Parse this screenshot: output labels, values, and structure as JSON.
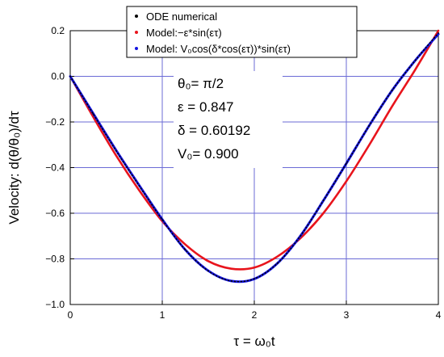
{
  "chart_data": {
    "type": "line",
    "xlabel": "τ = ω₀t",
    "ylabel": "Velocity: d(θ/θ₀)/dτ",
    "xlim": [
      0,
      4
    ],
    "ylim": [
      -1.0,
      0.2
    ],
    "xticks": [
      0,
      1,
      2,
      3,
      4
    ],
    "yticks": [
      -1.0,
      -0.8,
      -0.6,
      -0.4,
      -0.2,
      0.0,
      0.2
    ],
    "xtick_labels": [
      "0",
      "1",
      "2",
      "3",
      "4"
    ],
    "ytick_labels": [
      "−1.0",
      "−0.8",
      "−0.6",
      "−0.4",
      "−0.2",
      "0.0",
      "0.2"
    ],
    "grid": true,
    "legend_position": "top",
    "series": [
      {
        "name": "ODE  numerical",
        "color": "#000000",
        "marker": "dot",
        "x": [
          0,
          0.25,
          0.5,
          0.75,
          1.0,
          1.25,
          1.5,
          1.75,
          2.0,
          2.25,
          2.5,
          2.75,
          3.0,
          3.25,
          3.5,
          3.75,
          4.0
        ],
        "y": [
          0,
          -0.165,
          -0.327,
          -0.48,
          -0.628,
          -0.76,
          -0.853,
          -0.897,
          -0.887,
          -0.82,
          -0.7,
          -0.545,
          -0.382,
          -0.215,
          -0.06,
          0.07,
          0.19
        ]
      },
      {
        "name": "Model:−ε*sin(ετ)",
        "color": "#e8141c",
        "marker": "dot",
        "x": [
          0,
          0.25,
          0.5,
          0.75,
          1.0,
          1.25,
          1.5,
          1.75,
          2.0,
          2.25,
          2.5,
          2.75,
          3.0,
          3.25,
          3.5,
          3.75,
          4.0
        ],
        "y": [
          0,
          -0.178,
          -0.348,
          -0.5,
          -0.635,
          -0.737,
          -0.81,
          -0.843,
          -0.838,
          -0.79,
          -0.71,
          -0.6,
          -0.46,
          -0.3,
          -0.13,
          0.03,
          0.2
        ]
      },
      {
        "name": "Model: V₀cos(δ*cos(ετ))*sin(ετ)",
        "color": "#1414e0",
        "marker": "dot",
        "x": [
          0,
          0.25,
          0.5,
          0.75,
          1.0,
          1.25,
          1.5,
          1.75,
          2.0,
          2.25,
          2.5,
          2.75,
          3.0,
          3.25,
          3.5,
          3.75,
          4.0
        ],
        "y": [
          0,
          -0.163,
          -0.325,
          -0.478,
          -0.627,
          -0.76,
          -0.852,
          -0.897,
          -0.888,
          -0.82,
          -0.7,
          -0.545,
          -0.382,
          -0.215,
          -0.06,
          0.07,
          0.185
        ]
      }
    ],
    "annotations": [
      {
        "label": "θ₀= π/2"
      },
      {
        "label": "ε = 0.847"
      },
      {
        "label": "δ = 0.60192"
      },
      {
        "label": "V₀= 0.900"
      }
    ]
  }
}
